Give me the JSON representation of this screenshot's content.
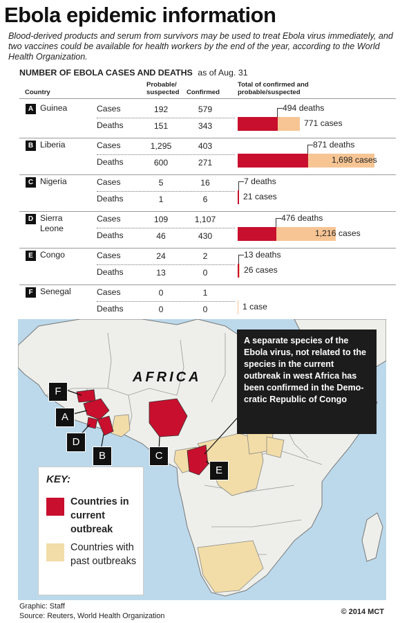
{
  "title": "Ebola epidemic information",
  "subtitle": "Blood-derived products and serum from survivors may be used to treat Ebola virus immediately, and two vaccines could be available for health workers by the end of the year, according to the World Health Organization.",
  "table": {
    "title": "NUMBER OF EBOLA CASES AND DEATHS",
    "as_of": "as of Aug. 31",
    "col_country": "Country",
    "col_probable": "Probable/ suspected",
    "col_confirmed": "Confirmed",
    "col_total": "Total of confirmed and probable/suspected",
    "cases_label": "Cases",
    "deaths_label": "Deaths",
    "rows": [
      {
        "letter": "A",
        "country": "Guinea",
        "cases_probable": "192",
        "cases_confirmed": "579",
        "deaths_probable": "151",
        "deaths_confirmed": "343",
        "deaths_note": "494 deaths",
        "cases_note": "771 cases",
        "total_deaths": 494,
        "total_cases": 771
      },
      {
        "letter": "B",
        "country": "Liberia",
        "cases_probable": "1,295",
        "cases_confirmed": "403",
        "deaths_probable": "600",
        "deaths_confirmed": "271",
        "deaths_note": "871 deaths",
        "cases_note": "1,698 cases",
        "total_deaths": 871,
        "total_cases": 1698
      },
      {
        "letter": "C",
        "country": "Nigeria",
        "cases_probable": "5",
        "cases_confirmed": "16",
        "deaths_probable": "1",
        "deaths_confirmed": "6",
        "deaths_note": "7 deaths",
        "cases_note": "21 cases",
        "total_deaths": 7,
        "total_cases": 21
      },
      {
        "letter": "D",
        "country": "Sierra Leone",
        "cases_probable": "109",
        "cases_confirmed": "1,107",
        "deaths_probable": "46",
        "deaths_confirmed": "430",
        "deaths_note": "476 deaths",
        "cases_note": "1,216 cases",
        "total_deaths": 476,
        "total_cases": 1216
      },
      {
        "letter": "E",
        "country": "Congo",
        "cases_probable": "24",
        "cases_confirmed": "2",
        "deaths_probable": "13",
        "deaths_confirmed": "0",
        "deaths_note": "13 deaths",
        "cases_note": "26 cases",
        "total_deaths": 13,
        "total_cases": 26
      },
      {
        "letter": "F",
        "country": "Senegal",
        "cases_probable": "0",
        "cases_confirmed": "1",
        "deaths_probable": "0",
        "deaths_confirmed": "0",
        "deaths_note": "",
        "cases_note": "1 case",
        "total_deaths": 0,
        "total_cases": 1
      }
    ]
  },
  "colors": {
    "deaths": "#c8102e",
    "cases": "#f6c593",
    "outbreak": "#c8102e",
    "past": "#f2dca8",
    "land": "#eeeeea",
    "water": "#bcd9ec"
  },
  "map": {
    "region_label": "AFRICA",
    "callout": "A separate species of the Ebola virus, not related to the species in the current outbreak in west Africa has been confirmed in the Demo-cratic Republic of Congo",
    "markers": [
      "F",
      "A",
      "D",
      "B",
      "C",
      "E"
    ]
  },
  "key": {
    "title": "KEY:",
    "current": "Countries in current outbreak",
    "past": "Countries with past outbreaks"
  },
  "credits": {
    "graphic": "Graphic: Staff",
    "source": "Source: Reuters, World Health Organization",
    "copyright": "© 2014 MCT"
  }
}
